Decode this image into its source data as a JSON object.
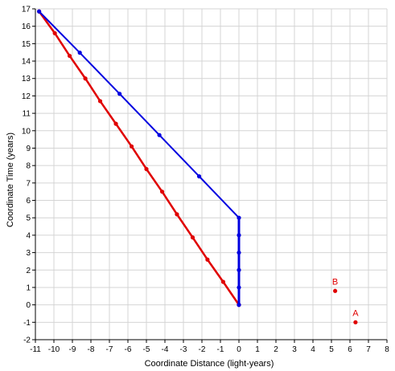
{
  "chart_data": {
    "type": "line",
    "title": "",
    "xlabel": "Coordinate Distance (light-years)",
    "ylabel": "Coordinate Time (years)",
    "xlim": [
      -11,
      8
    ],
    "ylim": [
      -2,
      17
    ],
    "x_ticks": [
      -11,
      -10,
      -9,
      -8,
      -7,
      -6,
      -5,
      -4,
      -3,
      -2,
      -1,
      0,
      1,
      2,
      3,
      4,
      5,
      6,
      7,
      8
    ],
    "y_ticks": [
      -2,
      -1,
      0,
      1,
      2,
      3,
      4,
      5,
      6,
      7,
      8,
      9,
      10,
      11,
      12,
      13,
      14,
      15,
      16,
      17
    ],
    "grid": true,
    "colors": {
      "red": "#e00000",
      "blue": "#0000e0",
      "grid": "#d4d4d4",
      "axis": "#000000"
    },
    "series": [
      {
        "color": "#e00000",
        "points": [
          [
            0,
            0
          ],
          [
            -0.85,
            1.32
          ],
          [
            -1.7,
            2.6
          ],
          [
            -2.5,
            3.87
          ],
          [
            -3.35,
            5.2
          ],
          [
            -4.15,
            6.5
          ],
          [
            -5.0,
            7.8
          ],
          [
            -5.8,
            9.1
          ],
          [
            -6.65,
            10.4
          ],
          [
            -7.5,
            11.7
          ],
          [
            -8.3,
            13.0
          ],
          [
            -9.15,
            14.3
          ],
          [
            -9.95,
            15.6
          ],
          [
            -10.8,
            16.85
          ]
        ]
      },
      {
        "color": "#0000e0",
        "points": [
          [
            0,
            0
          ],
          [
            0,
            1
          ],
          [
            0,
            2
          ],
          [
            0,
            3
          ],
          [
            0,
            4
          ],
          [
            0,
            5
          ],
          [
            -2.15,
            7.38
          ],
          [
            -4.3,
            9.75
          ],
          [
            -6.45,
            12.12
          ],
          [
            -8.6,
            14.48
          ],
          [
            -10.8,
            16.85
          ]
        ]
      }
    ],
    "labeled_points": [
      {
        "label": "B",
        "x": 5.2,
        "y": 0.8,
        "color": "#e00000"
      },
      {
        "label": "A",
        "x": 6.3,
        "y": -1.0,
        "color": "#e00000"
      }
    ]
  }
}
